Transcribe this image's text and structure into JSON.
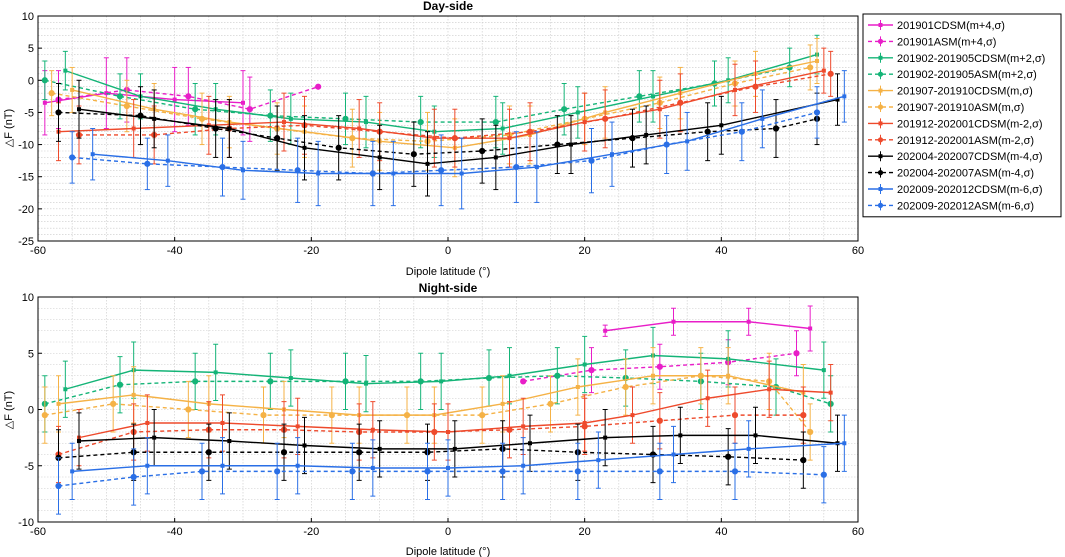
{
  "series_styles": [
    {
      "name": "201901CDSM(m+4,σ)",
      "color": "#e81ec8",
      "dashed": false,
      "marker": "square"
    },
    {
      "name": "201901ASM(m+4,σ)",
      "color": "#e81ec8",
      "dashed": true,
      "marker": "circle"
    },
    {
      "name": "201902-201905CDSM(m+2,σ)",
      "color": "#14b477",
      "dashed": false,
      "marker": "square"
    },
    {
      "name": "201902-201905ASM(m+2,σ)",
      "color": "#14b477",
      "dashed": true,
      "marker": "circle"
    },
    {
      "name": "201907-201910CDSM(m,σ)",
      "color": "#f5b246",
      "dashed": false,
      "marker": "square"
    },
    {
      "name": "201907-201910ASM(m,σ)",
      "color": "#f5b246",
      "dashed": true,
      "marker": "circle"
    },
    {
      "name": "201912-202001CDSM(m-2,σ)",
      "color": "#ee4a2c",
      "dashed": false,
      "marker": "square"
    },
    {
      "name": "201912-202001ASM(m-2,σ)",
      "color": "#ee4a2c",
      "dashed": true,
      "marker": "circle"
    },
    {
      "name": "202004-202007CDSM(m-4,σ)",
      "color": "#000000",
      "dashed": false,
      "marker": "square"
    },
    {
      "name": "202004-202007ASM(m-4,σ)",
      "color": "#000000",
      "dashed": true,
      "marker": "circle"
    },
    {
      "name": "202009-202012CDSM(m-6,σ)",
      "color": "#2a6fe6",
      "dashed": false,
      "marker": "square"
    },
    {
      "name": "202009-202012ASM(m-6,σ)",
      "color": "#2a6fe6",
      "dashed": true,
      "marker": "circle"
    }
  ],
  "chart_data": [
    {
      "type": "line",
      "title": "Day-side",
      "xlabel": "Dipole latitude (°)",
      "ylabel": "△F (nT)",
      "xlim": [
        -60,
        60
      ],
      "ylim": [
        -25,
        10
      ],
      "xticks": [
        -60,
        -40,
        -20,
        0,
        20,
        40,
        60
      ],
      "yticks": [
        10,
        5,
        0,
        -5,
        -10,
        -15,
        -20,
        -25
      ],
      "grid": true,
      "legend": "outside-right",
      "series": [
        {
          "name": "201901CDSM(m+4,σ)",
          "x": [
            -59,
            -50,
            -40,
            -30
          ],
          "y": [
            -3.5,
            -2,
            -3,
            -3.5
          ],
          "err": [
            5,
            5.5,
            5,
            5
          ]
        },
        {
          "name": "201901ASM(m+4,σ)",
          "x": [
            -57,
            -47,
            -38,
            -29,
            -19
          ],
          "y": [
            -3,
            -1.5,
            -2.5,
            -4.5,
            -1
          ],
          "err": [
            4.5,
            5,
            4.5,
            5,
            0
          ]
        },
        {
          "name": "201902-201905CDSM(m+2,σ)",
          "x": [
            -56,
            -45,
            -34,
            -23,
            -12,
            -2,
            8,
            19,
            30,
            41,
            54
          ],
          "y": [
            1.5,
            -2.5,
            -4.5,
            -6,
            -6.5,
            -8,
            -7.5,
            -5,
            -2.5,
            0,
            4
          ],
          "err": [
            3,
            3.5,
            4,
            4,
            4,
            4,
            4,
            4,
            4,
            3.5,
            3
          ]
        },
        {
          "name": "201902-201905ASM(m+2,σ)",
          "x": [
            -59,
            -48,
            -37,
            -26,
            -15,
            -4,
            7,
            17,
            28,
            39,
            50
          ],
          "y": [
            0,
            -2.5,
            -4.5,
            -5.5,
            -6,
            -6.5,
            -6.5,
            -4.5,
            -2.5,
            -0.5,
            2
          ],
          "err": [
            3,
            3.5,
            4,
            4,
            4,
            4,
            4,
            4,
            4,
            3.5,
            3
          ]
        },
        {
          "name": "201907-201910CDSM(m,σ)",
          "x": [
            -55,
            -43,
            -32,
            -21,
            -10,
            1,
            12,
            23,
            34,
            45,
            54
          ],
          "y": [
            -1.5,
            -4.5,
            -6.5,
            -8,
            -9.5,
            -10.5,
            -8.5,
            -5,
            -2,
            1,
            3
          ],
          "err": [
            3.5,
            4,
            4,
            4,
            4.5,
            4.5,
            4.5,
            4,
            4,
            3.5,
            3.5
          ]
        },
        {
          "name": "201907-201910ASM(m,σ)",
          "x": [
            -58,
            -47,
            -36,
            -25,
            -14,
            -3,
            9,
            20,
            31,
            42,
            53
          ],
          "y": [
            -2,
            -4,
            -6,
            -7.5,
            -9,
            -9.5,
            -8.5,
            -6,
            -3.5,
            -0.5,
            2
          ],
          "err": [
            3.5,
            4,
            4,
            4,
            4.5,
            4.5,
            4.5,
            4,
            4,
            3.5,
            3.5
          ]
        },
        {
          "name": "201912-202001CDSM(m-2,σ)",
          "x": [
            -57,
            -46,
            -35,
            -24,
            -13,
            -2,
            9,
            20,
            31,
            42,
            55
          ],
          "y": [
            -8,
            -7.5,
            -7,
            -6.5,
            -7.5,
            -9,
            -9,
            -6.5,
            -4.5,
            -1.5,
            1.5
          ],
          "err": [
            4.5,
            4.5,
            4.5,
            4.5,
            4.5,
            4.5,
            4.5,
            4.5,
            4.5,
            4,
            3.5
          ]
        },
        {
          "name": "201912-202001ASM(m-2,σ)",
          "x": [
            -54,
            -43,
            -32,
            -21,
            -10,
            1,
            12,
            23,
            34,
            45,
            56
          ],
          "y": [
            -8.5,
            -8.5,
            -7.5,
            -7,
            -8,
            -9,
            -8,
            -6,
            -3.5,
            -1,
            1
          ],
          "err": [
            4.5,
            4.5,
            4.5,
            4.5,
            4.5,
            4.5,
            4.5,
            4.5,
            4.5,
            4,
            3.5
          ]
        },
        {
          "name": "202004-202007CDSM(m-4,σ)",
          "x": [
            -54,
            -43,
            -32,
            -21,
            -10,
            -3,
            7,
            18,
            29,
            40,
            57
          ],
          "y": [
            -4.5,
            -6,
            -7.5,
            -10.5,
            -12,
            -13,
            -12,
            -10,
            -8.5,
            -7,
            -3
          ],
          "err": [
            4.5,
            4.5,
            4.5,
            5,
            5,
            5,
            5,
            4.5,
            4.5,
            4.5,
            4
          ]
        },
        {
          "name": "202004-202007ASM(m-4,σ)",
          "x": [
            -57,
            -45,
            -34,
            -25,
            -16,
            -5,
            5,
            16,
            27,
            38,
            48,
            54
          ],
          "y": [
            -5,
            -5.5,
            -7.5,
            -9,
            -10.5,
            -11.5,
            -11,
            -10,
            -9,
            -8,
            -7.5,
            -6
          ],
          "err": [
            4.5,
            4.5,
            4.5,
            5,
            5,
            5,
            5,
            4.5,
            4.5,
            4.5,
            4.5,
            4
          ]
        },
        {
          "name": "202009-202012CDSM(m-6,σ)",
          "x": [
            -52,
            -41,
            -30,
            -19,
            -8,
            2,
            13,
            24,
            35,
            46,
            58
          ],
          "y": [
            -11.5,
            -12.5,
            -14,
            -14.5,
            -14.5,
            -14.5,
            -13.5,
            -11.5,
            -9.5,
            -6,
            -2.5
          ],
          "err": [
            4,
            4,
            4.5,
            5,
            5,
            5.5,
            5.5,
            5,
            4.5,
            4.5,
            4
          ]
        },
        {
          "name": "202009-202012ASM(m-6,σ)",
          "x": [
            -55,
            -44,
            -33,
            -22,
            -11,
            -1,
            10,
            21,
            32,
            43,
            54
          ],
          "y": [
            -12,
            -13,
            -13.5,
            -14,
            -14.5,
            -14,
            -13.5,
            -12.5,
            -10,
            -8,
            -5
          ],
          "err": [
            4,
            4,
            4.5,
            5,
            5,
            5.5,
            5.5,
            5,
            4.5,
            4.5,
            4
          ]
        }
      ]
    },
    {
      "type": "line",
      "title": "Night-side",
      "xlabel": "Dipole latitude (°)",
      "ylabel": "△F (nT)",
      "xlim": [
        -60,
        60
      ],
      "ylim": [
        -10,
        10
      ],
      "xticks": [
        -60,
        -40,
        -20,
        0,
        20,
        40,
        60
      ],
      "yticks": [
        10,
        5,
        0,
        -5,
        -10
      ],
      "grid": true,
      "series": [
        {
          "name": "201901CDSM(m+4,σ)",
          "x": [
            23,
            33,
            44,
            53
          ],
          "y": [
            7,
            7.8,
            7.8,
            7.2
          ],
          "err": [
            0.5,
            1.2,
            1.2,
            2
          ]
        },
        {
          "name": "201901ASM(m+4,σ)",
          "x": [
            11,
            21,
            31,
            41,
            51
          ],
          "y": [
            2.5,
            3.5,
            3.8,
            4.2,
            5
          ],
          "err": [
            0,
            2,
            2,
            2,
            2
          ]
        },
        {
          "name": "201902-201905CDSM(m+2,σ)",
          "x": [
            -56,
            -46,
            -34,
            -23,
            -12,
            -1,
            9,
            20,
            30,
            41,
            55
          ],
          "y": [
            1.8,
            3.5,
            3.3,
            2.8,
            2.3,
            2.5,
            3,
            4,
            4.8,
            4.5,
            3.5
          ],
          "err": [
            2.5,
            2.5,
            2.5,
            2.5,
            2.5,
            2.5,
            2.5,
            2.5,
            2.5,
            2.5,
            2.5
          ]
        },
        {
          "name": "201902-201905ASM(m+2,σ)",
          "x": [
            -59,
            -48,
            -37,
            -26,
            -15,
            -4,
            6,
            16,
            26,
            37,
            48,
            56
          ],
          "y": [
            0.5,
            2.2,
            2.5,
            2.5,
            2.5,
            2.5,
            2.8,
            3,
            2.8,
            2.5,
            2,
            0.5
          ],
          "err": [
            2.5,
            2.5,
            2.5,
            2.5,
            2.5,
            2.5,
            2.5,
            2.5,
            2.5,
            2.5,
            2.5,
            2.5
          ]
        },
        {
          "name": "201907-201910CDSM(m,σ)",
          "x": [
            -57,
            -46,
            -35,
            -24,
            -13,
            -2,
            8,
            19,
            30,
            41,
            52
          ],
          "y": [
            0.5,
            1.3,
            0.5,
            0,
            -0.5,
            -0.5,
            0.5,
            2,
            3,
            3,
            1.5
          ],
          "err": [
            2.5,
            2.5,
            2.5,
            2.5,
            2.5,
            2.5,
            2.5,
            2.5,
            2.5,
            2.5,
            2.5
          ]
        },
        {
          "name": "201907-201910ASM(m,σ)",
          "x": [
            -59,
            -49,
            -38,
            -27,
            -17,
            -6,
            5,
            15,
            26,
            37,
            47,
            53
          ],
          "y": [
            -0.5,
            0.5,
            0,
            -0.5,
            -0.5,
            -0.5,
            -0.5,
            0.5,
            2,
            3,
            2.5,
            -2
          ],
          "err": [
            2.5,
            2.5,
            2.5,
            2.5,
            2.5,
            2.5,
            2.5,
            2.5,
            2.5,
            2.5,
            2.5,
            2.5
          ]
        },
        {
          "name": "201912-202001CDSM(m-2,σ)",
          "x": [
            -54,
            -44,
            -33,
            -22,
            -11,
            0,
            11,
            20,
            27,
            38,
            47,
            56
          ],
          "y": [
            -2.5,
            -1.2,
            -1.2,
            -1.5,
            -1.8,
            -2,
            -1.5,
            -1.2,
            -0.5,
            1,
            1.8,
            1.5
          ],
          "err": [
            2.5,
            2.5,
            2.5,
            2.5,
            2.5,
            2.5,
            2.5,
            2.5,
            2.5,
            2.5,
            2.5,
            2.5
          ]
        },
        {
          "name": "201912-202001ASM(m-2,σ)",
          "x": [
            -57,
            -46,
            -35,
            -24,
            -13,
            -2,
            9,
            20,
            31,
            42,
            52
          ],
          "y": [
            -4,
            -2,
            -1.8,
            -1.8,
            -2,
            -2,
            -1.8,
            -1.5,
            -1,
            -0.5,
            -0.5
          ],
          "err": [
            2.5,
            2.5,
            2.5,
            2.5,
            2.5,
            2.5,
            2.5,
            2.5,
            2.5,
            2.5,
            2.5
          ]
        },
        {
          "name": "202004-202007CDSM(m-4,σ)",
          "x": [
            -54,
            -43,
            -32,
            -21,
            -10,
            1,
            12,
            23,
            34,
            45,
            57
          ],
          "y": [
            -2.8,
            -2.5,
            -2.8,
            -3.2,
            -3.5,
            -3.5,
            -3,
            -2.5,
            -2.3,
            -2.3,
            -3
          ],
          "err": [
            2.5,
            2.5,
            2.5,
            2.5,
            2.5,
            2.5,
            2.5,
            2.5,
            2.5,
            2.5,
            2.5
          ]
        },
        {
          "name": "202004-202007ASM(m-4,σ)",
          "x": [
            -57,
            -46,
            -35,
            -24,
            -13,
            -3,
            8,
            19,
            30,
            41,
            52
          ],
          "y": [
            -4.3,
            -3.8,
            -3.8,
            -3.8,
            -3.8,
            -3.8,
            -3.5,
            -3.8,
            -4,
            -4.2,
            -4.5
          ],
          "err": [
            2.5,
            2.5,
            2.5,
            2.5,
            2.5,
            2.5,
            2.5,
            2.5,
            2.5,
            2.5,
            2.5
          ]
        },
        {
          "name": "202009-202012CDSM(m-6,σ)",
          "x": [
            -55,
            -44,
            -33,
            -22,
            -11,
            0,
            11,
            22,
            33,
            44,
            58
          ],
          "y": [
            -5.5,
            -5,
            -5,
            -5,
            -5.2,
            -5.2,
            -5,
            -4.5,
            -4,
            -3.5,
            -3
          ],
          "err": [
            2.5,
            2.5,
            2.5,
            2.5,
            2.5,
            2.5,
            2.5,
            2.5,
            2.5,
            2.5,
            2.5
          ]
        },
        {
          "name": "202009-202012ASM(m-6,σ)",
          "x": [
            -57,
            -46,
            -36,
            -25,
            -14,
            -3,
            8,
            19,
            31,
            42,
            55
          ],
          "y": [
            -6.8,
            -6,
            -5.5,
            -5.5,
            -5.5,
            -5.5,
            -5.5,
            -5.5,
            -5.5,
            -5.5,
            -5.8
          ],
          "err": [
            2.5,
            2.5,
            2.5,
            2.5,
            2.5,
            2.5,
            2.5,
            2.5,
            2.5,
            2.5,
            2.5
          ]
        }
      ]
    }
  ]
}
